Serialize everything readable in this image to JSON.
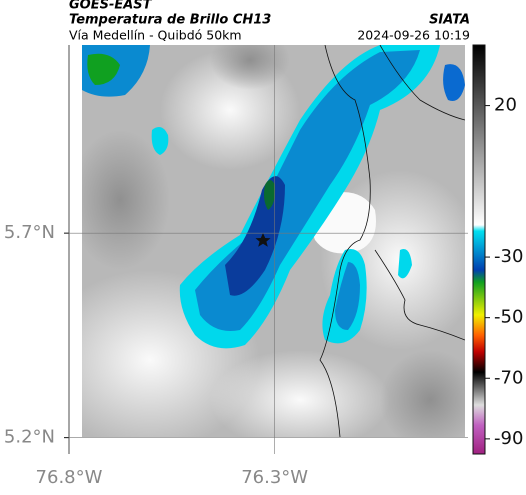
{
  "header": {
    "source": "GOES-EAST",
    "product": "Temperatura de Brillo CH13",
    "subtitle": "Vía Medellín - Quibdó 50km",
    "org": "SIATA",
    "timestamp": "2024-09-26 10:19"
  },
  "map": {
    "lat_lim": [
      5.16,
      6.16
    ],
    "lon_lim": [
      -76.8,
      -75.83
    ],
    "lat_ticks": [
      {
        "value": 5.7,
        "label": "5.7°N"
      },
      {
        "value": 5.2,
        "label": "5.2°N"
      }
    ],
    "lon_ticks": [
      {
        "value": -76.8,
        "label": "76.8°W"
      },
      {
        "value": -76.3,
        "label": "76.3°W"
      }
    ]
  },
  "colorbar": {
    "lim": [
      40,
      -95
    ],
    "ticks": [
      20,
      -30,
      -50,
      -70,
      -90
    ]
  }
}
